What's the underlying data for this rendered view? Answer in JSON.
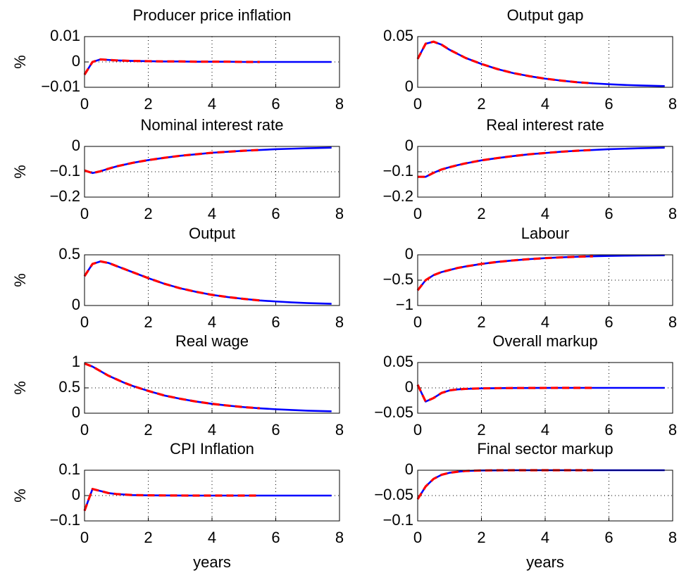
{
  "chart_data": [
    {
      "type": "line",
      "title": "Producer price inflation",
      "ylabel": "%",
      "x": [
        0,
        0.25,
        0.5,
        0.75,
        1,
        1.25,
        1.5,
        2,
        2.5,
        3,
        3.5,
        4,
        4.5,
        5,
        5.5,
        6,
        6.5,
        7,
        7.75
      ],
      "xlim": [
        0,
        8
      ],
      "xticks": [
        0,
        2,
        4,
        6,
        8
      ],
      "ylim": [
        -0.01,
        0.01
      ],
      "yticks": [
        {
          "value": -0.01,
          "label": "−0.01"
        },
        0,
        0.01
      ],
      "grid": true,
      "series": [
        {
          "color": "#0000ff",
          "style": "solid",
          "values": [
            -0.005,
            0,
            0.001,
            0.0008,
            0.0006,
            0.0005,
            0.0004,
            0.0003,
            0.0002,
            0.0002,
            0.0001,
            0.0001,
            0.0001,
            0,
            0,
            0,
            0,
            0,
            0
          ]
        },
        {
          "color": "#ff0000",
          "style": "dashed",
          "values": [
            -0.005,
            0,
            0.001,
            0.0008,
            0.0006,
            0.0005,
            0.0004,
            0.0003,
            0.0002,
            0.0002,
            0.0001,
            0.0001,
            0.0001,
            0,
            0,
            null,
            null,
            null,
            null
          ]
        }
      ]
    },
    {
      "type": "line",
      "title": "Output gap",
      "x": [
        0,
        0.25,
        0.5,
        0.75,
        1,
        1.25,
        1.5,
        2,
        2.5,
        3,
        3.5,
        4,
        4.5,
        5,
        5.5,
        6,
        6.5,
        7,
        7.75
      ],
      "xlim": [
        0,
        8
      ],
      "xticks": [
        0,
        2,
        4,
        6,
        8
      ],
      "ylim": [
        0,
        0.05
      ],
      "yticks": [
        0,
        0.05
      ],
      "grid": true,
      "series": [
        {
          "color": "#0000ff",
          "style": "solid",
          "values": [
            0.028,
            0.043,
            0.045,
            0.042,
            0.037,
            0.033,
            0.029,
            0.023,
            0.018,
            0.014,
            0.011,
            0.0085,
            0.0066,
            0.005,
            0.0039,
            0.003,
            0.0023,
            0.0018,
            0.0012
          ]
        },
        {
          "color": "#ff0000",
          "style": "dashed",
          "values": [
            0.028,
            0.043,
            0.045,
            0.042,
            0.037,
            0.033,
            0.029,
            0.023,
            0.018,
            0.014,
            0.011,
            0.0085,
            0.0066,
            0.005,
            0.0039,
            null,
            null,
            null,
            null
          ]
        }
      ]
    },
    {
      "type": "line",
      "title": "Nominal interest rate",
      "ylabel": "%",
      "x": [
        0,
        0.25,
        0.5,
        0.75,
        1,
        1.25,
        1.5,
        2,
        2.5,
        3,
        3.5,
        4,
        4.5,
        5,
        5.5,
        6,
        6.5,
        7,
        7.75
      ],
      "xlim": [
        0,
        8
      ],
      "xticks": [
        0,
        2,
        4,
        6,
        8
      ],
      "ylim": [
        -0.2,
        0
      ],
      "yticks": [
        {
          "value": -0.2,
          "label": "−0.2"
        },
        {
          "value": -0.1,
          "label": "−0.1"
        },
        0
      ],
      "grid": true,
      "series": [
        {
          "color": "#0000ff",
          "style": "solid",
          "values": [
            -0.095,
            -0.105,
            -0.098,
            -0.088,
            -0.079,
            -0.072,
            -0.065,
            -0.054,
            -0.045,
            -0.037,
            -0.031,
            -0.025,
            -0.021,
            -0.017,
            -0.014,
            -0.011,
            -0.009,
            -0.007,
            -0.005
          ]
        },
        {
          "color": "#ff0000",
          "style": "dashed",
          "values": [
            -0.095,
            -0.105,
            -0.098,
            -0.088,
            -0.079,
            -0.072,
            -0.065,
            -0.054,
            -0.045,
            -0.037,
            -0.031,
            -0.025,
            -0.021,
            -0.017,
            -0.014,
            null,
            null,
            null,
            null
          ]
        }
      ]
    },
    {
      "type": "line",
      "title": "Real interest rate",
      "x": [
        0,
        0.25,
        0.5,
        0.75,
        1,
        1.25,
        1.5,
        2,
        2.5,
        3,
        3.5,
        4,
        4.5,
        5,
        5.5,
        6,
        6.5,
        7,
        7.75
      ],
      "xlim": [
        0,
        8
      ],
      "xticks": [
        0,
        2,
        4,
        6,
        8
      ],
      "ylim": [
        -0.2,
        0
      ],
      "yticks": [
        {
          "value": -0.2,
          "label": "−0.2"
        },
        {
          "value": -0.1,
          "label": "−0.1"
        },
        0
      ],
      "grid": true,
      "series": [
        {
          "color": "#0000ff",
          "style": "solid",
          "values": [
            -0.12,
            -0.12,
            -0.104,
            -0.091,
            -0.082,
            -0.074,
            -0.067,
            -0.055,
            -0.046,
            -0.038,
            -0.031,
            -0.026,
            -0.021,
            -0.017,
            -0.014,
            -0.011,
            -0.009,
            -0.007,
            -0.005
          ]
        },
        {
          "color": "#ff0000",
          "style": "dashed",
          "values": [
            -0.12,
            -0.12,
            -0.104,
            -0.091,
            -0.082,
            -0.074,
            -0.067,
            -0.055,
            -0.046,
            -0.038,
            -0.031,
            -0.026,
            -0.021,
            -0.017,
            -0.014,
            null,
            null,
            null,
            null
          ]
        }
      ]
    },
    {
      "type": "line",
      "title": "Output",
      "ylabel": "%",
      "x": [
        0,
        0.25,
        0.5,
        0.75,
        1,
        1.25,
        1.5,
        2,
        2.5,
        3,
        3.5,
        4,
        4.5,
        5,
        5.5,
        6,
        6.5,
        7,
        7.75
      ],
      "xlim": [
        0,
        8
      ],
      "xticks": [
        0,
        2,
        4,
        6,
        8
      ],
      "ylim": [
        0,
        0.5
      ],
      "yticks": [
        0,
        0.5
      ],
      "grid": true,
      "series": [
        {
          "color": "#0000ff",
          "style": "solid",
          "values": [
            0.29,
            0.41,
            0.435,
            0.42,
            0.39,
            0.36,
            0.33,
            0.27,
            0.215,
            0.17,
            0.135,
            0.105,
            0.083,
            0.065,
            0.05,
            0.04,
            0.031,
            0.024,
            0.017
          ]
        },
        {
          "color": "#ff0000",
          "style": "dashed",
          "values": [
            0.29,
            0.41,
            0.435,
            0.42,
            0.39,
            0.36,
            0.33,
            0.27,
            0.215,
            0.17,
            0.135,
            0.105,
            0.083,
            0.065,
            0.05,
            null,
            null,
            null,
            null
          ]
        }
      ]
    },
    {
      "type": "line",
      "title": "Labour",
      "x": [
        0,
        0.25,
        0.5,
        0.75,
        1,
        1.25,
        1.5,
        2,
        2.5,
        3,
        3.5,
        4,
        4.5,
        5,
        5.5,
        6,
        6.5,
        7,
        7.75
      ],
      "xlim": [
        0,
        8
      ],
      "xticks": [
        0,
        2,
        4,
        6,
        8
      ],
      "ylim": [
        -1,
        0
      ],
      "yticks": [
        {
          "value": -1,
          "label": "−1"
        },
        {
          "value": -0.5,
          "label": "−0.5"
        },
        0
      ],
      "grid": true,
      "series": [
        {
          "color": "#0000ff",
          "style": "solid",
          "values": [
            -0.7,
            -0.5,
            -0.4,
            -0.34,
            -0.3,
            -0.26,
            -0.23,
            -0.18,
            -0.14,
            -0.11,
            -0.085,
            -0.065,
            -0.05,
            -0.038,
            -0.029,
            -0.022,
            -0.017,
            -0.013,
            -0.009
          ]
        },
        {
          "color": "#ff0000",
          "style": "dashed",
          "values": [
            -0.7,
            -0.5,
            -0.4,
            -0.34,
            -0.3,
            -0.26,
            -0.23,
            -0.18,
            -0.14,
            -0.11,
            -0.085,
            -0.065,
            -0.05,
            -0.038,
            -0.029,
            null,
            null,
            null,
            null
          ]
        }
      ]
    },
    {
      "type": "line",
      "title": "Real wage",
      "ylabel": "%",
      "x": [
        0,
        0.25,
        0.5,
        0.75,
        1,
        1.25,
        1.5,
        2,
        2.5,
        3,
        3.5,
        4,
        4.5,
        5,
        5.5,
        6,
        6.5,
        7,
        7.75
      ],
      "xlim": [
        0,
        8
      ],
      "xticks": [
        0,
        2,
        4,
        6,
        8
      ],
      "ylim": [
        0,
        1
      ],
      "yticks": [
        0,
        0.5,
        1
      ],
      "grid": true,
      "series": [
        {
          "color": "#0000ff",
          "style": "solid",
          "values": [
            0.98,
            0.92,
            0.83,
            0.74,
            0.67,
            0.6,
            0.54,
            0.44,
            0.35,
            0.285,
            0.23,
            0.185,
            0.15,
            0.12,
            0.097,
            0.078,
            0.063,
            0.05,
            0.037
          ]
        },
        {
          "color": "#ff0000",
          "style": "dashed",
          "values": [
            0.98,
            0.92,
            0.83,
            0.74,
            0.67,
            0.6,
            0.54,
            0.44,
            0.35,
            0.285,
            0.23,
            0.185,
            0.15,
            0.12,
            0.097,
            null,
            null,
            null,
            null
          ]
        }
      ]
    },
    {
      "type": "line",
      "title": "Overall markup",
      "x": [
        0,
        0.25,
        0.5,
        0.75,
        1,
        1.25,
        1.5,
        2,
        2.5,
        3,
        3.5,
        4,
        4.5,
        5,
        5.5,
        6,
        6.5,
        7,
        7.75
      ],
      "xlim": [
        0,
        8
      ],
      "xticks": [
        0,
        2,
        4,
        6,
        8
      ],
      "ylim": [
        -0.05,
        0.05
      ],
      "yticks": [
        {
          "value": -0.05,
          "label": "−0.05"
        },
        0,
        0.05
      ],
      "grid": true,
      "series": [
        {
          "color": "#0000ff",
          "style": "solid",
          "values": [
            0.006,
            -0.027,
            -0.02,
            -0.01,
            -0.005,
            -0.003,
            -0.002,
            -0.001,
            -0.0006,
            -0.0003,
            -0.0002,
            -0.0001,
            0,
            0,
            0,
            0,
            0,
            0,
            0
          ]
        },
        {
          "color": "#ff0000",
          "style": "dashed",
          "values": [
            0.006,
            -0.027,
            -0.02,
            -0.01,
            -0.005,
            -0.003,
            -0.002,
            -0.001,
            -0.0006,
            -0.0003,
            -0.0002,
            -0.0001,
            0,
            0,
            0,
            null,
            null,
            null,
            null
          ]
        }
      ]
    },
    {
      "type": "line",
      "title": "CPI Inflation",
      "ylabel": "%",
      "xlabel": "years",
      "x": [
        0,
        0.25,
        0.5,
        0.75,
        1,
        1.25,
        1.5,
        2,
        2.5,
        3,
        3.5,
        4,
        4.5,
        5,
        5.5,
        6,
        6.5,
        7,
        7.75
      ],
      "xlim": [
        0,
        8
      ],
      "xticks": [
        0,
        2,
        4,
        6,
        8
      ],
      "ylim": [
        -0.1,
        0.1
      ],
      "yticks": [
        {
          "value": -0.1,
          "label": "−0.1"
        },
        0,
        0.1
      ],
      "grid": true,
      "series": [
        {
          "color": "#0000ff",
          "style": "solid",
          "values": [
            -0.06,
            0.026,
            0.018,
            0.01,
            0.006,
            0.004,
            0.002,
            0.001,
            0.0005,
            0.0002,
            0,
            0,
            0,
            0,
            0,
            0,
            0,
            0,
            0
          ]
        },
        {
          "color": "#ff0000",
          "style": "dashed",
          "values": [
            -0.06,
            0.026,
            0.018,
            0.01,
            0.006,
            0.004,
            0.002,
            0.001,
            0.0005,
            0.0002,
            0,
            0,
            0,
            0,
            0,
            null,
            null,
            null,
            null
          ]
        }
      ]
    },
    {
      "type": "line",
      "title": "Final sector markup",
      "xlabel": "years",
      "x": [
        0,
        0.25,
        0.5,
        0.75,
        1,
        1.25,
        1.5,
        2,
        2.5,
        3,
        3.5,
        4,
        4.5,
        5,
        5.5,
        6,
        6.5,
        7,
        7.75
      ],
      "xlim": [
        0,
        8
      ],
      "xticks": [
        0,
        2,
        4,
        6,
        8
      ],
      "ylim": [
        -0.1,
        0
      ],
      "yticks": [
        {
          "value": -0.1,
          "label": "−0.1"
        },
        {
          "value": -0.05,
          "label": "−0.05"
        },
        0
      ],
      "grid": true,
      "series": [
        {
          "color": "#0000ff",
          "style": "solid",
          "values": [
            -0.057,
            -0.032,
            -0.017,
            -0.009,
            -0.005,
            -0.003,
            -0.0015,
            -0.0005,
            -0.0002,
            0,
            0,
            0,
            0,
            0,
            0,
            0,
            0,
            0,
            0
          ]
        },
        {
          "color": "#ff0000",
          "style": "dashed",
          "values": [
            -0.057,
            -0.032,
            -0.017,
            -0.009,
            -0.005,
            -0.003,
            -0.0015,
            -0.0005,
            -0.0002,
            0,
            0,
            0,
            0,
            0,
            0,
            null,
            null,
            null,
            null
          ]
        }
      ]
    }
  ]
}
